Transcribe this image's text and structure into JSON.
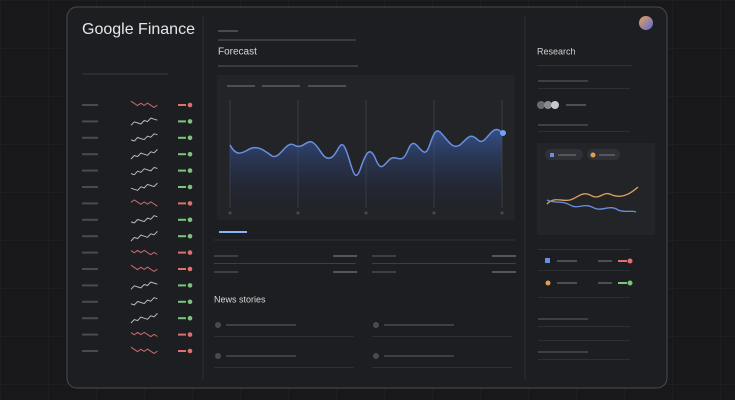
{
  "header": {
    "brand": "Google Finance"
  },
  "forecast": {
    "title": "Forecast"
  },
  "research": {
    "title": "Research"
  },
  "news": {
    "title": "News stories"
  }
}
